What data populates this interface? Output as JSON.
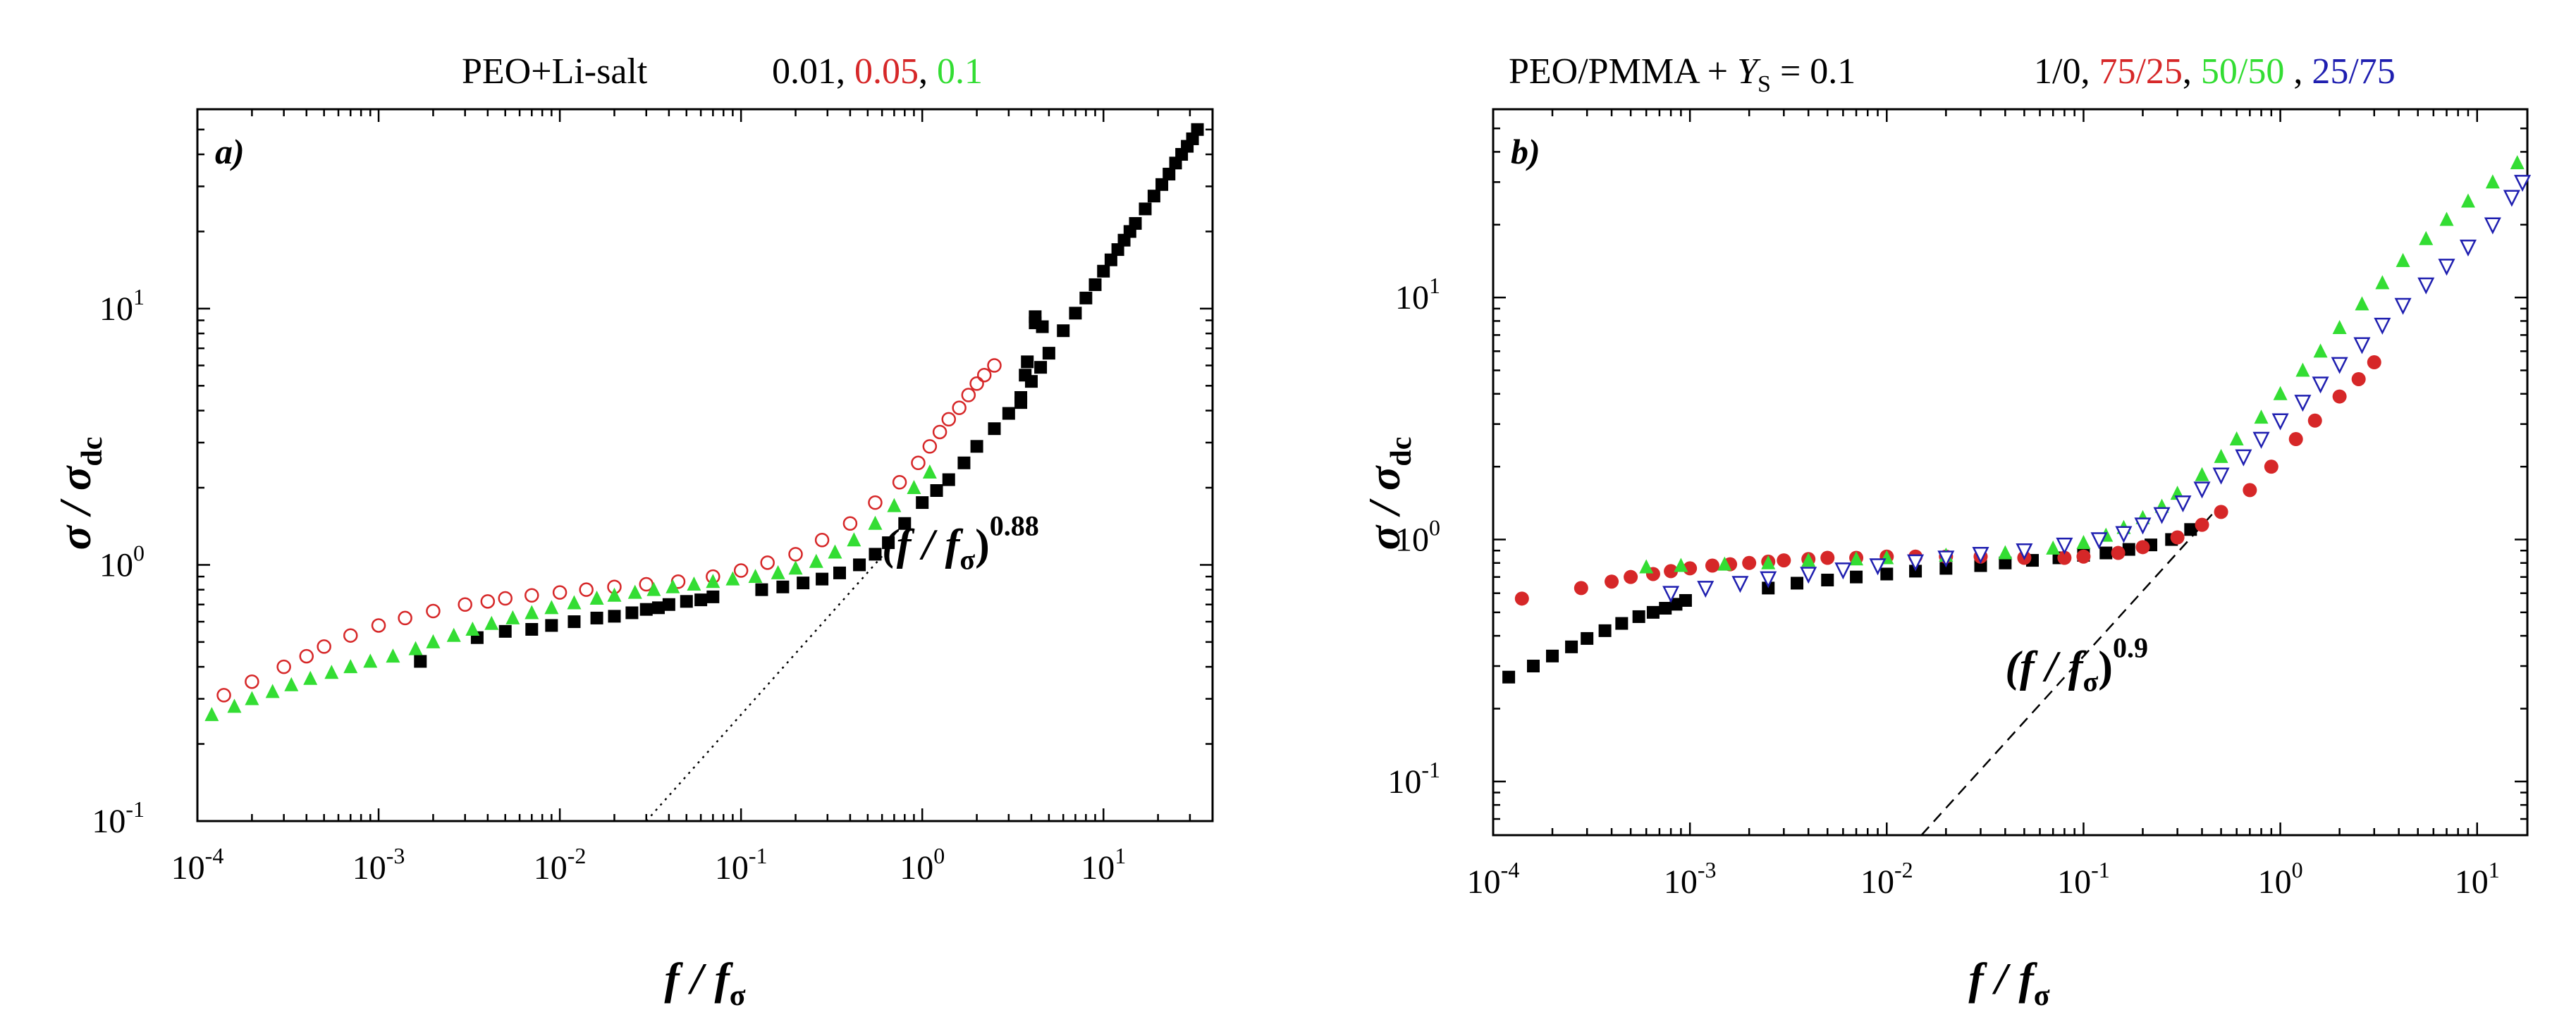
{
  "colors": {
    "black": "#000000",
    "red": "#d62728",
    "green": "#33dd33",
    "blue": "#1f1fb0",
    "navy": "#1a1a66",
    "white": "#ffffff"
  },
  "chart_data": [
    {
      "type": "scatter",
      "panel_label": "a)",
      "title": {
        "prefix": "PEO+Li-salt",
        "concentrations": [
          "0.01",
          "0.05",
          "0.1"
        ],
        "separators": [
          ", ",
          ", "
        ]
      },
      "xlabel": {
        "main": "f / f",
        "sub": "σ"
      },
      "ylabel": {
        "main": "σ / σ",
        "sub": "dc"
      },
      "xscale": "log",
      "yscale": "log",
      "xlim": [
        0.0001,
        40
      ],
      "ylim": [
        0.1,
        60
      ],
      "xticks": [
        {
          "base": "10",
          "exp": "-4",
          "value": 0.0001
        },
        {
          "base": "10",
          "exp": "-3",
          "value": 0.001
        },
        {
          "base": "10",
          "exp": "-2",
          "value": 0.01
        },
        {
          "base": "10",
          "exp": "-1",
          "value": 0.1
        },
        {
          "base": "10",
          "exp": "0",
          "value": 1
        },
        {
          "base": "10",
          "exp": "1",
          "value": 10
        }
      ],
      "yticks": [
        {
          "base": "10",
          "exp": "-1",
          "value": 0.1
        },
        {
          "base": "10",
          "exp": "0",
          "value": 1
        },
        {
          "base": "10",
          "exp": "1",
          "value": 10
        }
      ],
      "annotation": {
        "main": "(f / f",
        "sub": "σ",
        "close": ")",
        "exp": "0.88",
        "x": 0.6,
        "y": 1.05
      },
      "powerlaw": {
        "exponent": 0.88,
        "x": [
          0.03,
          0.6
        ],
        "y": [
          0.1,
          1.08
        ],
        "style": "dotted"
      },
      "series": [
        {
          "name": "0.01",
          "color": "black",
          "marker": "filled-square",
          "x": [
            0.0017,
            0.0035,
            0.005,
            0.007,
            0.009,
            0.012,
            0.016,
            0.02,
            0.025,
            0.03,
            0.035,
            0.04,
            0.05,
            0.06,
            0.07,
            0.13,
            0.17,
            0.22,
            0.28,
            0.35,
            0.45,
            0.55,
            0.65,
            0.8,
            1.0,
            1.2,
            1.4,
            1.7,
            2.0,
            2.5,
            3.0,
            3.5,
            4.0,
            4.5,
            5,
            6,
            7,
            8,
            9,
            10,
            11,
            12,
            13,
            14,
            15,
            17,
            19,
            21,
            23,
            25,
            27,
            29,
            31,
            33,
            3.5,
            3.8,
            4.2,
            4.6,
            4.2,
            3.7
          ],
          "y": [
            0.42,
            0.52,
            0.55,
            0.56,
            0.58,
            0.6,
            0.62,
            0.63,
            0.65,
            0.67,
            0.68,
            0.7,
            0.72,
            0.73,
            0.75,
            0.8,
            0.82,
            0.85,
            0.88,
            0.93,
            1.0,
            1.1,
            1.22,
            1.45,
            1.75,
            1.95,
            2.15,
            2.5,
            2.9,
            3.4,
            3.9,
            4.5,
            5.2,
            5.9,
            6.7,
            8.2,
            9.6,
            11,
            12.4,
            14,
            15.5,
            17,
            18.5,
            20,
            21.5,
            24.5,
            27.5,
            30.5,
            33.5,
            37,
            40,
            43,
            46,
            50,
            4.3,
            6.2,
            8.8,
            8.5,
            9.3,
            5.5
          ]
        },
        {
          "name": "0.05",
          "color": "red",
          "marker": "open-circle",
          "x": [
            0.00014,
            0.0002,
            0.0003,
            0.0004,
            0.0005,
            0.0007,
            0.001,
            0.0014,
            0.002,
            0.003,
            0.004,
            0.005,
            0.007,
            0.01,
            0.014,
            0.02,
            0.03,
            0.045,
            0.07,
            0.1,
            0.14,
            0.2,
            0.28,
            0.4,
            0.55,
            0.75,
            0.95,
            1.1,
            1.25,
            1.4,
            1.6,
            1.8,
            2.0,
            2.2,
            2.5
          ],
          "y": [
            0.31,
            0.35,
            0.4,
            0.44,
            0.48,
            0.53,
            0.58,
            0.62,
            0.66,
            0.7,
            0.72,
            0.74,
            0.76,
            0.78,
            0.8,
            0.82,
            0.84,
            0.86,
            0.9,
            0.95,
            1.02,
            1.1,
            1.25,
            1.45,
            1.75,
            2.1,
            2.5,
            2.9,
            3.3,
            3.7,
            4.1,
            4.6,
            5.1,
            5.5,
            6.0
          ]
        },
        {
          "name": "0.1",
          "color": "green",
          "marker": "filled-triangle",
          "x": [
            0.00012,
            0.00016,
            0.0002,
            0.00026,
            0.00033,
            0.00042,
            0.00055,
            0.0007,
            0.0009,
            0.0012,
            0.0016,
            0.002,
            0.0026,
            0.0033,
            0.0042,
            0.0055,
            0.007,
            0.009,
            0.012,
            0.016,
            0.02,
            0.026,
            0.033,
            0.042,
            0.055,
            0.07,
            0.09,
            0.12,
            0.16,
            0.2,
            0.26,
            0.33,
            0.42,
            0.55,
            0.7,
            0.9,
            1.1
          ],
          "y": [
            0.26,
            0.28,
            0.3,
            0.32,
            0.34,
            0.36,
            0.38,
            0.4,
            0.42,
            0.44,
            0.47,
            0.5,
            0.53,
            0.56,
            0.59,
            0.62,
            0.65,
            0.68,
            0.71,
            0.74,
            0.76,
            0.78,
            0.8,
            0.82,
            0.84,
            0.86,
            0.88,
            0.9,
            0.93,
            0.97,
            1.03,
            1.12,
            1.25,
            1.45,
            1.7,
            2.0,
            2.3
          ]
        }
      ]
    },
    {
      "type": "scatter",
      "panel_label": "b)",
      "title": {
        "prefix": "PEO/PMMA + ",
        "ys_var": "Y",
        "ys_sub": "S",
        "ys_value": " = 0.1",
        "ratios": [
          "1/0",
          "75/25",
          "50/50",
          "25/75"
        ],
        "separators": [
          ", ",
          ", ",
          " , "
        ]
      },
      "xlabel": {
        "main": "f / f",
        "sub": "σ"
      },
      "ylabel": {
        "main": "σ / σ",
        "sub": "dc"
      },
      "xscale": "log",
      "yscale": "log",
      "xlim": [
        0.0001,
        18
      ],
      "ylim": [
        0.06,
        60
      ],
      "xticks": [
        {
          "base": "10",
          "exp": "-4",
          "value": 0.0001
        },
        {
          "base": "10",
          "exp": "-3",
          "value": 0.001
        },
        {
          "base": "10",
          "exp": "-2",
          "value": 0.01
        },
        {
          "base": "10",
          "exp": "-1",
          "value": 0.1
        },
        {
          "base": "10",
          "exp": "0",
          "value": 1
        },
        {
          "base": "10",
          "exp": "1",
          "value": 10
        }
      ],
      "yticks": [
        {
          "base": "10",
          "exp": "-1",
          "value": 0.1
        },
        {
          "base": "10",
          "exp": "0",
          "value": 1
        },
        {
          "base": "10",
          "exp": "1",
          "value": 10
        }
      ],
      "annotation": {
        "main": "(f / f",
        "sub": "σ",
        "close": ")",
        "exp": "0.9",
        "x": 0.04,
        "y": 0.26
      },
      "powerlaw": {
        "exponent": 0.9,
        "x": [
          0.015,
          0.45
        ],
        "y": [
          0.06,
          1.27
        ],
        "style": "dashed"
      },
      "series": [
        {
          "name": "1/0",
          "color": "black",
          "marker": "filled-square",
          "x": [
            0.00012,
            0.00016,
            0.0002,
            0.00025,
            0.0003,
            0.00037,
            0.00045,
            0.00055,
            0.00065,
            0.00075,
            0.00085,
            0.00095,
            0.0025,
            0.0035,
            0.005,
            0.007,
            0.01,
            0.014,
            0.02,
            0.03,
            0.04,
            0.055,
            0.075,
            0.1,
            0.13,
            0.17,
            0.22,
            0.28,
            0.35
          ],
          "y": [
            0.27,
            0.3,
            0.33,
            0.36,
            0.39,
            0.42,
            0.45,
            0.48,
            0.5,
            0.52,
            0.54,
            0.56,
            0.63,
            0.66,
            0.68,
            0.7,
            0.72,
            0.74,
            0.76,
            0.78,
            0.8,
            0.82,
            0.84,
            0.86,
            0.88,
            0.91,
            0.95,
            1.0,
            1.1
          ]
        },
        {
          "name": "75/25",
          "color": "red",
          "marker": "filled-circle",
          "x": [
            0.00014,
            0.00028,
            0.0004,
            0.0005,
            0.00065,
            0.0008,
            0.001,
            0.0013,
            0.0016,
            0.002,
            0.0025,
            0.003,
            0.004,
            0.005,
            0.007,
            0.01,
            0.014,
            0.02,
            0.03,
            0.05,
            0.08,
            0.1,
            0.15,
            0.2,
            0.3,
            0.4,
            0.5,
            0.7,
            0.9,
            1.2,
            1.5,
            2.0,
            2.5,
            3.0
          ],
          "y": [
            0.57,
            0.63,
            0.67,
            0.7,
            0.72,
            0.74,
            0.76,
            0.78,
            0.79,
            0.8,
            0.81,
            0.82,
            0.83,
            0.84,
            0.84,
            0.85,
            0.85,
            0.85,
            0.85,
            0.84,
            0.84,
            0.85,
            0.88,
            0.93,
            1.02,
            1.15,
            1.3,
            1.6,
            2.0,
            2.6,
            3.1,
            3.9,
            4.6,
            5.4
          ]
        },
        {
          "name": "50/50",
          "color": "green",
          "marker": "filled-triangle",
          "x": [
            0.0006,
            0.0009,
            0.0015,
            0.0025,
            0.004,
            0.007,
            0.01,
            0.02,
            0.04,
            0.07,
            0.1,
            0.13,
            0.16,
            0.2,
            0.25,
            0.3,
            0.4,
            0.5,
            0.6,
            0.8,
            1.0,
            1.3,
            1.6,
            2.0,
            2.6,
            3.3,
            4.2,
            5.5,
            7,
            9,
            12,
            16
          ],
          "y": [
            0.77,
            0.78,
            0.79,
            0.8,
            0.82,
            0.83,
            0.84,
            0.86,
            0.88,
            0.92,
            0.97,
            1.04,
            1.12,
            1.23,
            1.37,
            1.55,
            1.85,
            2.2,
            2.6,
            3.2,
            4.0,
            5.0,
            6.0,
            7.5,
            9.4,
            11.5,
            14.2,
            17.5,
            21,
            25,
            30,
            36
          ]
        },
        {
          "name": "25/75",
          "color": "blue",
          "marker": "open-triangle-down",
          "x": [
            0.0008,
            0.0012,
            0.0018,
            0.0025,
            0.004,
            0.006,
            0.009,
            0.014,
            0.02,
            0.03,
            0.05,
            0.08,
            0.12,
            0.16,
            0.2,
            0.25,
            0.32,
            0.4,
            0.5,
            0.65,
            0.8,
            1.0,
            1.3,
            1.6,
            2.0,
            2.6,
            3.3,
            4.2,
            5.5,
            7,
            9,
            12,
            15,
            17
          ],
          "y": [
            0.6,
            0.63,
            0.66,
            0.69,
            0.72,
            0.75,
            0.78,
            0.81,
            0.84,
            0.87,
            0.9,
            0.95,
            1.0,
            1.06,
            1.15,
            1.27,
            1.42,
            1.62,
            1.85,
            2.2,
            2.6,
            3.1,
            3.7,
            4.4,
            5.3,
            6.4,
            7.7,
            9.3,
            11.3,
            13.5,
            16.2,
            20,
            26,
            30
          ]
        }
      ]
    }
  ]
}
